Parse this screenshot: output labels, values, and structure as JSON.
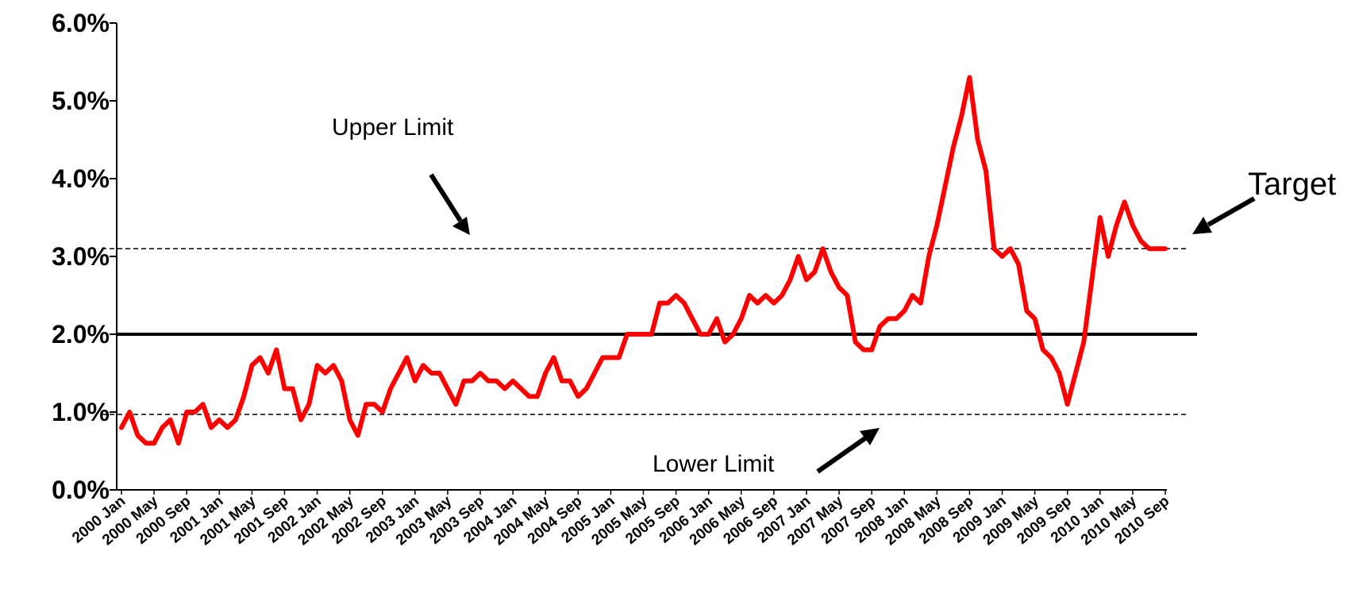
{
  "chart_data": {
    "type": "line",
    "title": "",
    "xlabel": "",
    "ylabel": "",
    "ylim": [
      0,
      6
    ],
    "grid": false,
    "legend": "none",
    "y_ticks": [
      0,
      1,
      2,
      3,
      4,
      5,
      6
    ],
    "y_tick_labels": [
      "0.0%",
      "1.0%",
      "2.0%",
      "3.0%",
      "4.0%",
      "5.0%",
      "6.0%"
    ],
    "x_tick_labels": [
      "2000 Jan",
      "2000 May",
      "2000 Sep",
      "2001 Jan",
      "2001 May",
      "2001 Sep",
      "2002 Jan",
      "2002 May",
      "2002 Sep",
      "2003 Jan",
      "2003 May",
      "2003 Sep",
      "2004 Jan",
      "2004 May",
      "2004 Sep",
      "2005 Jan",
      "2005 May",
      "2005 Sep",
      "2006 Jan",
      "2006 May",
      "2006 Sep",
      "2007 Jan",
      "2007 May",
      "2007 Sep",
      "2008 Jan",
      "2008 May",
      "2008 Sep",
      "2009 Jan",
      "2009 May",
      "2009 Sep",
      "2010 Jan",
      "2010 May",
      "2010 Sep"
    ],
    "series_color": "#ff0000",
    "series": [
      {
        "values": [
          0.8,
          1.0,
          0.7,
          0.6,
          0.6,
          0.8,
          0.9,
          0.6,
          1.0,
          1.0,
          1.1,
          0.8,
          0.9,
          0.8,
          0.9,
          1.2,
          1.6,
          1.7,
          1.5,
          1.8,
          1.3,
          1.3,
          0.9,
          1.1,
          1.6,
          1.5,
          1.6,
          1.4,
          0.9,
          0.7,
          1.1,
          1.1,
          1.0,
          1.3,
          1.5,
          1.7,
          1.4,
          1.6,
          1.5,
          1.5,
          1.3,
          1.1,
          1.4,
          1.4,
          1.5,
          1.4,
          1.4,
          1.3,
          1.4,
          1.3,
          1.2,
          1.2,
          1.5,
          1.7,
          1.4,
          1.4,
          1.2,
          1.3,
          1.5,
          1.7,
          1.7,
          1.7,
          2.0,
          2.0,
          2.0,
          2.0,
          2.4,
          2.4,
          2.5,
          2.4,
          2.2,
          2.0,
          2.0,
          2.2,
          1.9,
          2.0,
          2.2,
          2.5,
          2.4,
          2.5,
          2.4,
          2.5,
          2.7,
          3.0,
          2.7,
          2.8,
          3.1,
          2.8,
          2.6,
          2.5,
          1.9,
          1.8,
          1.8,
          2.1,
          2.2,
          2.2,
          2.3,
          2.5,
          2.4,
          3.0,
          3.4,
          3.9,
          4.4,
          4.8,
          5.3,
          4.5,
          4.1,
          3.1,
          3.0,
          3.1,
          2.9,
          2.3,
          2.2,
          1.8,
          1.7,
          1.5,
          1.1,
          1.5,
          1.9,
          2.7,
          3.5,
          3.0,
          3.4,
          3.7,
          3.4,
          3.2,
          3.1,
          3.1,
          3.1
        ]
      }
    ],
    "reference_lines": [
      {
        "value": 2.0,
        "style": "solid"
      },
      {
        "value": 3.1,
        "style": "dashed"
      },
      {
        "value": 0.97,
        "style": "dashed"
      }
    ],
    "annotations": {
      "upper": "Upper Limit",
      "lower": "Lower Limit",
      "target": "Target"
    }
  }
}
